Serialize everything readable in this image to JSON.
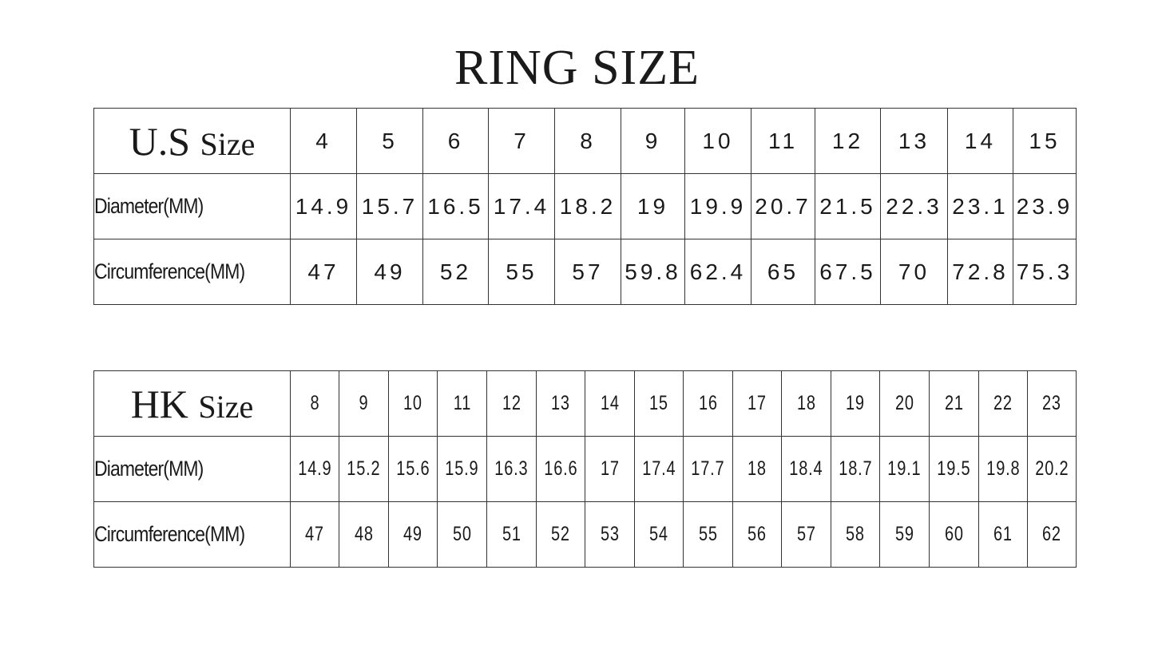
{
  "title": "RING SIZE",
  "us_table": {
    "header_main": "U.S",
    "header_sub": "Size",
    "diameter_label": "Diameter(MM)",
    "circumference_label": "Circumference(MM)",
    "sizes": [
      "4",
      "5",
      "6",
      "7",
      "8",
      "9",
      "10",
      "11",
      "12",
      "13",
      "14",
      "15"
    ],
    "diameter": [
      "14.9",
      "15.7",
      "16.5",
      "17.4",
      "18.2",
      "19",
      "19.9",
      "20.7",
      "21.5",
      "22.3",
      "23.1",
      "23.9"
    ],
    "circumference": [
      "47",
      "49",
      "52",
      "55",
      "57",
      "59.8",
      "62.4",
      "65",
      "67.5",
      "70",
      "72.8",
      "75.3"
    ]
  },
  "hk_table": {
    "header_main": "HK",
    "header_sub": "Size",
    "diameter_label": "Diameter(MM)",
    "circumference_label": "Circumference(MM)",
    "sizes": [
      "8",
      "9",
      "10",
      "11",
      "12",
      "13",
      "14",
      "15",
      "16",
      "17",
      "18",
      "19",
      "20",
      "21",
      "22",
      "23"
    ],
    "diameter": [
      "14.9",
      "15.2",
      "15.6",
      "15.9",
      "16.3",
      "16.6",
      "17",
      "17.4",
      "17.7",
      "18",
      "18.4",
      "18.7",
      "19.1",
      "19.5",
      "19.8",
      "20.2"
    ],
    "circumference": [
      "47",
      "48",
      "49",
      "50",
      "51",
      "52",
      "53",
      "54",
      "55",
      "56",
      "57",
      "58",
      "59",
      "60",
      "61",
      "62"
    ]
  }
}
